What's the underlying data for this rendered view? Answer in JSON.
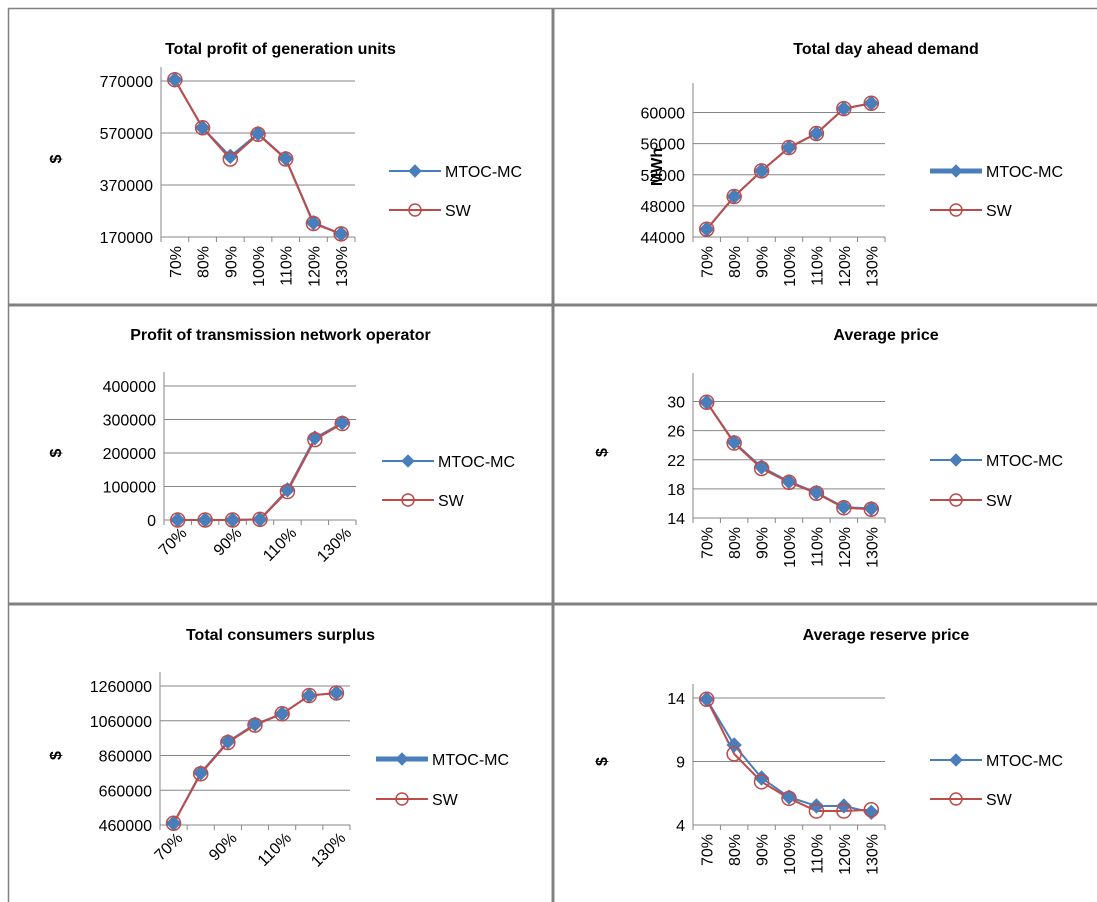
{
  "colors": {
    "series_mtoc": "#4a7ebb",
    "series_sw": "#be4b48",
    "grid": "#868686",
    "border": "#808080"
  },
  "chart_data": [
    {
      "type": "line",
      "title": "Total profit of generation units",
      "ylabel": "$",
      "xlabel": "",
      "categories": [
        "70%",
        "80%",
        "90%",
        "100%",
        "110%",
        "120%",
        "130%"
      ],
      "yticks": [
        "770000",
        "570000",
        "370000",
        "170000"
      ],
      "ylim": [
        170000,
        770000
      ],
      "grid": true,
      "legend": "right",
      "series": [
        {
          "name": "MTOC-MC",
          "marker": "diamond",
          "values": [
            775000,
            590000,
            480000,
            568000,
            472000,
            225000,
            182000
          ]
        },
        {
          "name": "SW",
          "marker": "circle",
          "values": [
            775000,
            590000,
            470000,
            565000,
            470000,
            222000,
            182000
          ]
        }
      ]
    },
    {
      "type": "line",
      "title": "Total day ahead demand",
      "ylabel": "MWh",
      "xlabel": "",
      "categories": [
        "70%",
        "80%",
        "90%",
        "100%",
        "110%",
        "120%",
        "130%"
      ],
      "yticks": [
        "60000",
        "56000",
        "52000",
        "48000",
        "44000"
      ],
      "ylim": [
        44000,
        62000
      ],
      "grid": true,
      "legend": "right",
      "series": [
        {
          "name": "MTOC-MC",
          "marker": "diamond",
          "values": [
            45000,
            49200,
            52500,
            55500,
            57300,
            60500,
            61200
          ]
        },
        {
          "name": "SW",
          "marker": "circle",
          "values": [
            45000,
            49200,
            52500,
            55500,
            57300,
            60500,
            61200
          ]
        }
      ]
    },
    {
      "type": "line",
      "title": "Profit of transmission network operator",
      "ylabel": "$",
      "xlabel": "",
      "categories": [
        "70%",
        "80%",
        "90%",
        "100%",
        "110%",
        "120%",
        "130%"
      ],
      "category_labels_shown": [
        "70%",
        "90%",
        "110%",
        "130%"
      ],
      "yticks": [
        "400000",
        "300000",
        "200000",
        "100000",
        "0"
      ],
      "ylim": [
        0,
        400000
      ],
      "grid": true,
      "legend": "right",
      "series": [
        {
          "name": "MTOC-MC",
          "marker": "diamond",
          "values": [
            0,
            0,
            0,
            2000,
            90000,
            245000,
            290000
          ]
        },
        {
          "name": "SW",
          "marker": "circle",
          "values": [
            0,
            0,
            0,
            2000,
            85000,
            240000,
            288000
          ]
        }
      ]
    },
    {
      "type": "line",
      "title": "Average price",
      "ylabel": "$",
      "xlabel": "",
      "categories": [
        "70%",
        "80%",
        "90%",
        "100%",
        "110%",
        "120%",
        "130%"
      ],
      "yticks": [
        "30",
        "26",
        "22",
        "18",
        "14"
      ],
      "ylim": [
        14,
        32
      ],
      "grid": true,
      "legend": "right",
      "series": [
        {
          "name": "MTOC-MC",
          "marker": "diamond",
          "values": [
            29.9,
            24.4,
            21.0,
            19.0,
            17.5,
            15.5,
            15.3
          ]
        },
        {
          "name": "SW",
          "marker": "circle",
          "values": [
            29.9,
            24.3,
            20.8,
            18.9,
            17.4,
            15.4,
            15.2
          ]
        }
      ]
    },
    {
      "type": "line",
      "title": "Total consumers surplus",
      "ylabel": "$",
      "xlabel": "",
      "categories": [
        "70%",
        "80%",
        "90%",
        "100%",
        "110%",
        "120%",
        "130%"
      ],
      "category_labels_shown": [
        "70%",
        "90%",
        "110%",
        "130%"
      ],
      "yticks": [
        "1260000",
        "1060000",
        "860000",
        "660000",
        "460000"
      ],
      "ylim": [
        460000,
        1260000
      ],
      "grid": true,
      "legend": "right",
      "series": [
        {
          "name": "MTOC-MC",
          "marker": "diamond",
          "values": [
            470000,
            760000,
            940000,
            1040000,
            1100000,
            1205000,
            1220000
          ]
        },
        {
          "name": "SW",
          "marker": "circle",
          "values": [
            470000,
            755000,
            935000,
            1035000,
            1100000,
            1205000,
            1220000
          ]
        }
      ]
    },
    {
      "type": "line",
      "title": "Average reserve price",
      "ylabel": "$",
      "xlabel": "",
      "categories": [
        "70%",
        "80%",
        "90%",
        "100%",
        "110%",
        "120%",
        "130%"
      ],
      "yticks": [
        "14",
        "9",
        "4"
      ],
      "ylim": [
        4,
        14
      ],
      "grid": true,
      "legend": "right",
      "series": [
        {
          "name": "MTOC-MC",
          "marker": "diamond",
          "values": [
            13.9,
            10.3,
            7.7,
            6.2,
            5.5,
            5.5,
            5.0
          ]
        },
        {
          "name": "SW",
          "marker": "circle",
          "values": [
            13.9,
            9.6,
            7.4,
            6.1,
            5.1,
            5.1,
            5.2
          ]
        }
      ]
    }
  ]
}
